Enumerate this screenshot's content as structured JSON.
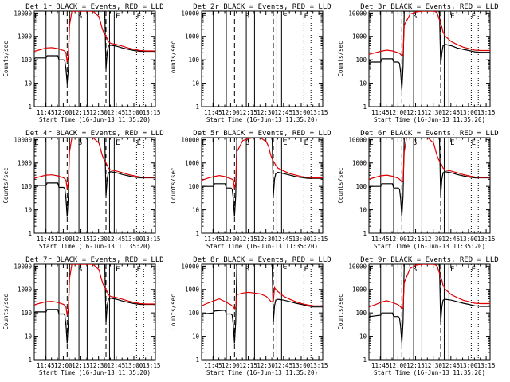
{
  "chart_data": {
    "type": "line",
    "figure": "RHESSI detector count rates, 9 panels (3x3 grid)",
    "shared": {
      "xlabel": "Start Time (16-Jun-13 11:35:20)",
      "ylabel": "Counts/sec",
      "x_tick_labels": [
        "11:45",
        "12:00",
        "12:15",
        "12:30",
        "12:45",
        "13:00",
        "13:15"
      ],
      "x_tick_minutes": [
        9.67,
        24.67,
        39.67,
        54.67,
        69.67,
        84.67,
        99.67
      ],
      "xlim_minutes": [
        0,
        103
      ],
      "y_scale": "log",
      "ylim": [
        1,
        12000
      ],
      "y_tick_values": [
        1,
        10,
        100,
        1000,
        10000
      ],
      "y_tick_labels": [
        "1",
        "10",
        "100",
        "1000",
        "10000"
      ],
      "black_series_name": "Events",
      "red_series_name": "LLD",
      "black_color": "#000000",
      "red_color": "#e00000",
      "solid_line_minutes": [
        10,
        21,
        38,
        45,
        64,
        68
      ],
      "dashed_line_minutes": [
        28,
        61
      ],
      "dotted_line_minutes": [
        87,
        93
      ],
      "top_markers": [
        {
          "label": "E",
          "minute": 2
        },
        {
          "label": "S",
          "minute": 39
        },
        {
          "label": "E",
          "minute": 71
        },
        {
          "label": "E",
          "minute": 89
        }
      ]
    },
    "panels": [
      {
        "title": "Det 1r  BLACK = Events, RED = LLD",
        "red": {
          "x": [
            0,
            5,
            10,
            15,
            20,
            25,
            26,
            27,
            28,
            29,
            30,
            32,
            34,
            36,
            38,
            40,
            42,
            45,
            50,
            55,
            57,
            58,
            59,
            60,
            61,
            62,
            63,
            65,
            70,
            75,
            80,
            85,
            90,
            95,
            100,
            103
          ],
          "y": [
            230,
            270,
            320,
            330,
            300,
            250,
            230,
            200,
            80,
            160,
            3000,
            12000,
            12000,
            12000,
            12000,
            12000,
            12000,
            12000,
            12000,
            7000,
            3000,
            2000,
            1500,
            1200,
            1000,
            800,
            600,
            500,
            450,
            380,
            320,
            280,
            250,
            240,
            240,
            240
          ]
        },
        "black": {
          "x": [
            0,
            1,
            10,
            11,
            20,
            21,
            25,
            26,
            27,
            28,
            29,
            30,
            60,
            61,
            62,
            63,
            65,
            70,
            75,
            80,
            85,
            90,
            95,
            100,
            103
          ],
          "y": [
            110,
            120,
            120,
            150,
            150,
            100,
            100,
            90,
            40,
            10,
            40,
            12000,
            12000,
            40,
            200,
            380,
            420,
            380,
            320,
            280,
            250,
            230,
            230,
            230,
            230
          ]
        }
      },
      {
        "title": "Det 2r  BLACK = Events, RED = LLD",
        "red": {
          "x": [],
          "y": []
        },
        "black": {
          "x": [],
          "y": []
        }
      },
      {
        "title": "Det 3r  BLACK = Events, RED = LLD",
        "red": {
          "x": [
            0,
            5,
            10,
            15,
            20,
            25,
            26,
            27,
            28,
            29,
            30,
            35,
            40,
            45,
            50,
            55,
            57,
            58,
            59,
            60,
            61,
            62,
            63,
            65,
            70,
            75,
            80,
            85,
            90,
            95,
            100,
            103
          ],
          "y": [
            170,
            200,
            230,
            260,
            240,
            200,
            190,
            170,
            150,
            170,
            3000,
            9000,
            11000,
            12000,
            12000,
            12000,
            11000,
            10000,
            7000,
            5000,
            3500,
            2500,
            1500,
            1000,
            600,
            450,
            350,
            300,
            260,
            250,
            250,
            250
          ]
        },
        "black": {
          "x": [
            0,
            1,
            10,
            11,
            20,
            21,
            25,
            26,
            27,
            28,
            29,
            30,
            60,
            61,
            62,
            63,
            65,
            70,
            75,
            80,
            85,
            90,
            95,
            100,
            103
          ],
          "y": [
            70,
            80,
            80,
            110,
            110,
            80,
            80,
            70,
            30,
            5,
            50,
            12000,
            12000,
            60,
            200,
            400,
            450,
            400,
            320,
            280,
            250,
            220,
            210,
            210,
            210
          ]
        }
      },
      {
        "title": "Det 4r  BLACK = Events, RED = LLD",
        "red": {
          "x": [
            0,
            5,
            10,
            15,
            20,
            25,
            26,
            27,
            28,
            29,
            30,
            32,
            34,
            36,
            38,
            40,
            42,
            45,
            50,
            55,
            57,
            58,
            59,
            60,
            61,
            62,
            63,
            65,
            70,
            75,
            80,
            85,
            90,
            95,
            100,
            103
          ],
          "y": [
            220,
            260,
            300,
            310,
            280,
            230,
            210,
            180,
            80,
            160,
            3000,
            12000,
            12000,
            12000,
            12000,
            12000,
            12000,
            12000,
            12000,
            7000,
            3000,
            2000,
            1500,
            1200,
            1000,
            800,
            600,
            500,
            450,
            380,
            320,
            280,
            250,
            240,
            240,
            240
          ]
        },
        "black": {
          "x": [
            0,
            1,
            10,
            11,
            20,
            21,
            25,
            26,
            27,
            28,
            29,
            30,
            60,
            61,
            62,
            63,
            65,
            70,
            75,
            80,
            85,
            90,
            95,
            100,
            103
          ],
          "y": [
            100,
            110,
            110,
            140,
            140,
            90,
            90,
            80,
            30,
            5,
            40,
            12000,
            12000,
            40,
            200,
            380,
            420,
            380,
            320,
            280,
            250,
            230,
            230,
            230,
            230
          ]
        }
      },
      {
        "title": "Det 5r  BLACK = Events, RED = LLD",
        "red": {
          "x": [
            0,
            5,
            10,
            15,
            20,
            25,
            26,
            27,
            28,
            29,
            30,
            35,
            40,
            45,
            50,
            55,
            57,
            58,
            59,
            60,
            61,
            62,
            63,
            65,
            70,
            75,
            80,
            85,
            90,
            95,
            100,
            103
          ],
          "y": [
            180,
            220,
            260,
            290,
            260,
            210,
            200,
            180,
            80,
            150,
            3000,
            9000,
            11000,
            12000,
            12000,
            8000,
            5000,
            3000,
            2000,
            1500,
            1200,
            1000,
            800,
            600,
            450,
            350,
            300,
            260,
            240,
            230,
            230,
            230
          ]
        },
        "black": {
          "x": [
            0,
            1,
            10,
            11,
            20,
            21,
            25,
            26,
            27,
            28,
            29,
            30,
            60,
            61,
            62,
            63,
            65,
            70,
            75,
            80,
            85,
            90,
            95,
            100,
            103
          ],
          "y": [
            90,
            100,
            100,
            130,
            130,
            85,
            85,
            75,
            30,
            5,
            40,
            12000,
            12000,
            40,
            200,
            350,
            400,
            350,
            300,
            260,
            240,
            220,
            220,
            220,
            220
          ]
        }
      },
      {
        "title": "Det 6r  BLACK = Events, RED = LLD",
        "red": {
          "x": [
            0,
            5,
            10,
            15,
            20,
            25,
            26,
            27,
            28,
            29,
            30,
            32,
            34,
            36,
            38,
            40,
            42,
            45,
            50,
            55,
            57,
            58,
            59,
            60,
            61,
            62,
            63,
            65,
            70,
            75,
            80,
            85,
            90,
            95,
            100,
            103
          ],
          "y": [
            200,
            240,
            280,
            300,
            270,
            220,
            200,
            180,
            150,
            170,
            3000,
            12000,
            12000,
            12000,
            12000,
            12000,
            12000,
            12000,
            12000,
            7000,
            3000,
            2000,
            1500,
            1200,
            1000,
            800,
            600,
            500,
            450,
            380,
            320,
            280,
            250,
            240,
            240,
            240
          ]
        },
        "black": {
          "x": [
            0,
            1,
            10,
            11,
            20,
            21,
            25,
            26,
            27,
            28,
            29,
            30,
            60,
            61,
            62,
            63,
            65,
            70,
            75,
            80,
            85,
            90,
            95,
            100,
            103
          ],
          "y": [
            90,
            100,
            100,
            130,
            130,
            85,
            85,
            75,
            30,
            5,
            40,
            12000,
            12000,
            40,
            200,
            380,
            420,
            380,
            320,
            280,
            250,
            230,
            230,
            230,
            230
          ]
        }
      },
      {
        "title": "Det 7r  BLACK = Events, RED = LLD",
        "red": {
          "x": [
            0,
            5,
            10,
            15,
            20,
            25,
            26,
            27,
            28,
            29,
            30,
            32,
            34,
            36,
            38,
            40,
            42,
            45,
            50,
            55,
            57,
            58,
            59,
            60,
            61,
            62,
            63,
            65,
            70,
            75,
            80,
            85,
            90,
            95,
            100,
            103
          ],
          "y": [
            220,
            260,
            300,
            310,
            280,
            230,
            210,
            180,
            80,
            160,
            3000,
            12000,
            12000,
            12000,
            12000,
            12000,
            12000,
            12000,
            12000,
            7000,
            3000,
            2000,
            1500,
            1200,
            1000,
            800,
            600,
            500,
            450,
            380,
            320,
            280,
            250,
            240,
            240,
            240
          ]
        },
        "black": {
          "x": [
            0,
            1,
            10,
            11,
            20,
            21,
            25,
            26,
            27,
            28,
            29,
            30,
            60,
            61,
            62,
            63,
            65,
            70,
            75,
            80,
            85,
            90,
            95,
            100,
            103
          ],
          "y": [
            100,
            110,
            110,
            140,
            140,
            90,
            90,
            80,
            30,
            5,
            40,
            12000,
            12000,
            40,
            200,
            380,
            420,
            380,
            320,
            280,
            250,
            230,
            230,
            230,
            230
          ]
        }
      },
      {
        "title": "Det 8r  BLACK = Events, RED = LLD",
        "red": {
          "x": [
            0,
            5,
            10,
            15,
            20,
            25,
            26,
            27,
            28,
            29,
            30,
            35,
            40,
            45,
            50,
            55,
            57,
            58,
            59,
            60,
            61,
            62,
            63,
            65,
            70,
            75,
            80,
            85,
            90,
            95,
            100,
            103
          ],
          "y": [
            200,
            260,
            320,
            400,
            300,
            220,
            200,
            180,
            150,
            170,
            600,
            700,
            750,
            700,
            650,
            500,
            400,
            350,
            300,
            300,
            300,
            1200,
            1000,
            800,
            500,
            380,
            300,
            250,
            220,
            200,
            200,
            200
          ]
        },
        "black": {
          "x": [
            0,
            1,
            10,
            11,
            20,
            21,
            25,
            26,
            27,
            28,
            29,
            30,
            60,
            61,
            62,
            63,
            65,
            70,
            75,
            80,
            85,
            90,
            95,
            100,
            103
          ],
          "y": [
            80,
            90,
            100,
            120,
            130,
            90,
            90,
            80,
            30,
            5,
            40,
            12000,
            12000,
            40,
            200,
            350,
            380,
            350,
            300,
            260,
            230,
            200,
            180,
            180,
            180
          ]
        }
      },
      {
        "title": "Det 9r  BLACK = Events, RED = LLD",
        "red": {
          "x": [
            0,
            5,
            10,
            15,
            20,
            25,
            26,
            27,
            28,
            29,
            30,
            35,
            40,
            45,
            50,
            55,
            57,
            58,
            59,
            60,
            61,
            62,
            63,
            65,
            70,
            75,
            80,
            85,
            90,
            95,
            100,
            103
          ],
          "y": [
            180,
            220,
            280,
            330,
            280,
            220,
            200,
            180,
            150,
            170,
            2000,
            8000,
            11000,
            12000,
            12000,
            12000,
            11000,
            10000,
            7000,
            5000,
            3500,
            2500,
            1500,
            1000,
            600,
            450,
            350,
            300,
            260,
            250,
            250,
            250
          ]
        },
        "black": {
          "x": [
            0,
            1,
            10,
            11,
            20,
            21,
            25,
            26,
            27,
            28,
            29,
            30,
            60,
            61,
            62,
            63,
            65,
            70,
            75,
            80,
            85,
            90,
            95,
            100,
            103
          ],
          "y": [
            60,
            70,
            80,
            100,
            100,
            70,
            70,
            60,
            25,
            5,
            40,
            12000,
            12000,
            40,
            180,
            350,
            380,
            350,
            300,
            260,
            230,
            200,
            190,
            190,
            190
          ]
        }
      }
    ]
  }
}
